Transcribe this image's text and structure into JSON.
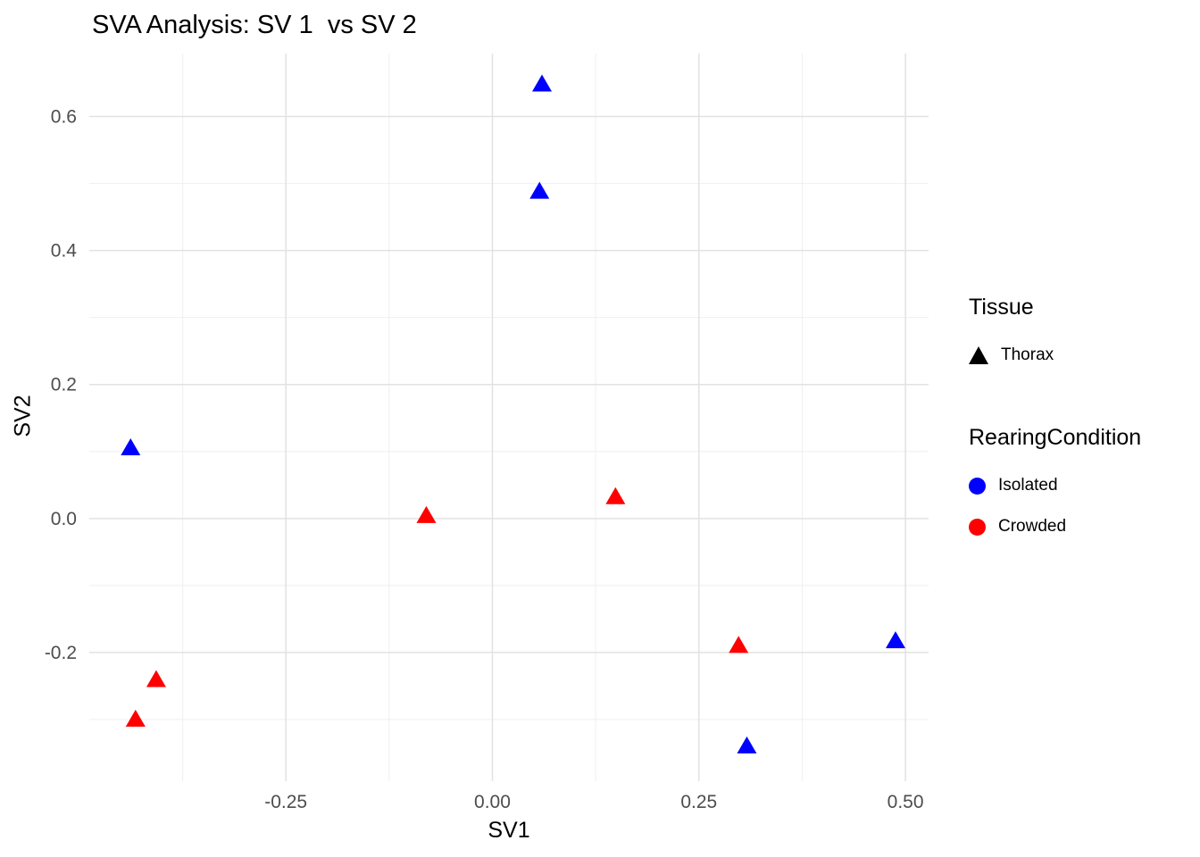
{
  "title": "SVA Analysis: SV 1  vs SV 2",
  "chart_data": {
    "type": "scatter",
    "title": "SVA Analysis: SV 1  vs SV 2",
    "xlabel": "SV1",
    "ylabel": "SV2",
    "xlim": [
      -0.488,
      0.528
    ],
    "ylim": [
      -0.392,
      0.694
    ],
    "x_ticks": [
      -0.25,
      0.0,
      0.25,
      0.5
    ],
    "x_tick_labels": [
      "-0.25",
      "0.00",
      "0.25",
      "0.50"
    ],
    "y_ticks": [
      -0.2,
      0.0,
      0.2,
      0.4,
      0.6
    ],
    "y_tick_labels": [
      "-0.2",
      "0.0",
      "0.2",
      "0.4",
      "0.6"
    ],
    "x_minor_ticks": [
      -0.375,
      -0.125,
      0.125,
      0.375
    ],
    "y_minor_ticks": [
      -0.3,
      -0.1,
      0.1,
      0.3,
      0.5
    ],
    "grid": true,
    "grid_major_color": "#E2E2E2",
    "grid_minor_color": "#EFEFEF",
    "marker": "triangle",
    "series": [
      {
        "name": "Isolated",
        "color": "#0000FF",
        "points": [
          {
            "x": 0.06,
            "y": 0.648
          },
          {
            "x": 0.057,
            "y": 0.488
          },
          {
            "x": -0.438,
            "y": 0.105
          },
          {
            "x": 0.488,
            "y": -0.183
          },
          {
            "x": 0.308,
            "y": -0.34
          }
        ]
      },
      {
        "name": "Crowded",
        "color": "#FF0000",
        "points": [
          {
            "x": 0.149,
            "y": 0.032
          },
          {
            "x": -0.08,
            "y": 0.004
          },
          {
            "x": 0.298,
            "y": -0.19
          },
          {
            "x": -0.407,
            "y": -0.241
          },
          {
            "x": -0.432,
            "y": -0.3
          }
        ]
      }
    ],
    "legend": {
      "position": "right",
      "groups": [
        {
          "title": "Tissue",
          "items": [
            {
              "label": "Thorax",
              "marker": "triangle",
              "color": "#000000"
            }
          ]
        },
        {
          "title": "RearingCondition",
          "items": [
            {
              "label": "Isolated",
              "marker": "circle",
              "color": "#0000FF"
            },
            {
              "label": "Crowded",
              "marker": "circle",
              "color": "#FF0000"
            }
          ]
        }
      ]
    }
  }
}
